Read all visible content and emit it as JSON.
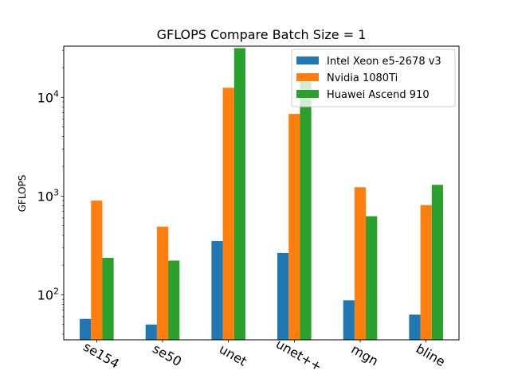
{
  "chart_data": {
    "type": "bar",
    "title": "GFLOPS Compare Batch Size = 1",
    "xlabel": "",
    "ylabel": "GFLOPS",
    "yscale": "log",
    "ylim": [
      35,
      33000
    ],
    "yticks": [
      {
        "value": 100,
        "base": "10",
        "exp": "2"
      },
      {
        "value": 1000,
        "base": "10",
        "exp": "3"
      },
      {
        "value": 10000,
        "base": "10",
        "exp": "4"
      }
    ],
    "grid": false,
    "legend_position": "top-right",
    "categories": [
      "se154",
      "se50",
      "unet",
      "unet++",
      "mgn",
      "bline"
    ],
    "series": [
      {
        "name": "Intel Xeon e5-2678 v3",
        "color": "#1f77b4",
        "values": [
          57,
          50,
          350,
          265,
          88,
          63
        ]
      },
      {
        "name": "Nvidia 1080Ti",
        "color": "#ff7f0e",
        "values": [
          900,
          490,
          12500,
          6800,
          1230,
          810
        ]
      },
      {
        "name": "Huawei Ascend 910",
        "color": "#2ca02c",
        "values": [
          237,
          222,
          31500,
          17500,
          625,
          1300
        ]
      }
    ]
  }
}
